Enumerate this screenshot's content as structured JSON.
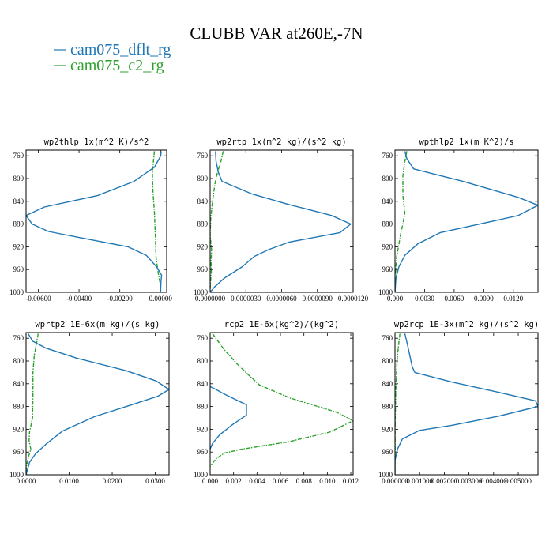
{
  "figure": {
    "title": "CLUBB VAR at260E,-7N",
    "legend": [
      {
        "label": "cam075_dflt_rg",
        "color": "#1f77b4",
        "dash": "solid"
      },
      {
        "label": "cam075_c2_rg",
        "color": "#2ca02c",
        "dash": "dashdot"
      }
    ]
  },
  "chart_data": [
    {
      "type": "line",
      "title": "wp2thlp   1x(m^2 K)/s^2",
      "xlim": [
        -0.0066,
        0.0003
      ],
      "ylim": [
        1000,
        750
      ],
      "yticks": [
        760,
        800,
        840,
        880,
        920,
        960,
        1000
      ],
      "xticks": [
        -0.006,
        -0.004,
        -0.002,
        0.0
      ],
      "xtick_labels": [
        "-0.00600",
        "-0.00400",
        "-0.00200",
        "0.00000"
      ],
      "series": [
        {
          "name": "cam075_dflt_rg",
          "points": [
            [
              3e-05,
              752
            ],
            [
              1e-05,
              760
            ],
            [
              -0.0003,
              780
            ],
            [
              -0.0013,
              805
            ],
            [
              -0.0031,
              830
            ],
            [
              -0.0057,
              850
            ],
            [
              -0.0066,
              865
            ],
            [
              -0.0063,
              880
            ],
            [
              -0.0055,
              893
            ],
            [
              -0.0038,
              905
            ],
            [
              -0.0016,
              920
            ],
            [
              -0.0007,
              935
            ],
            [
              -0.0002,
              955
            ],
            [
              5e-05,
              970
            ],
            [
              2e-05,
              980
            ],
            [
              0.0,
              1000
            ]
          ]
        },
        {
          "name": "cam075_c2_rg",
          "points": [
            [
              -0.0003,
              752
            ],
            [
              -0.00035,
              770
            ],
            [
              -0.0004,
              790
            ],
            [
              -0.00038,
              820
            ],
            [
              -0.0003,
              860
            ],
            [
              -0.00026,
              900
            ],
            [
              -0.00022,
              940
            ],
            [
              -0.00012,
              965
            ],
            [
              -2e-05,
              985
            ],
            [
              0.0,
              1000
            ]
          ]
        }
      ]
    },
    {
      "type": "line",
      "title": "wp2rtp   1x(m^2 kg)/(s^2 kg)",
      "xlim": [
        0.0,
        1.2e-05
      ],
      "ylim": [
        1000,
        750
      ],
      "yticks": [
        760,
        800,
        840,
        880,
        920,
        960,
        1000
      ],
      "xticks": [
        0.0,
        3e-06,
        6e-06,
        9e-06,
        1.2e-05
      ],
      "xtick_labels": [
        "0.0000000",
        "0.0000030",
        "0.0000060",
        "0.0000090",
        "0.0000120"
      ],
      "series": [
        {
          "name": "cam075_dflt_rg",
          "points": [
            [
              4.5e-07,
              752
            ],
            [
              5e-07,
              770
            ],
            [
              7e-07,
              790
            ],
            [
              1e-06,
              805
            ],
            [
              3.5e-06,
              827
            ],
            [
              6.5e-06,
              845
            ],
            [
              1.02e-05,
              865
            ],
            [
              1.18e-05,
              880
            ],
            [
              1.09e-05,
              895
            ],
            [
              6.6e-06,
              912
            ],
            [
              4.9e-06,
              925
            ],
            [
              3.7e-06,
              937
            ],
            [
              2.7e-06,
              955
            ],
            [
              1.2e-06,
              975
            ],
            [
              4e-07,
              990
            ],
            [
              0.0,
              1000
            ]
          ]
        },
        {
          "name": "cam075_c2_rg",
          "points": [
            [
              1.1e-06,
              752
            ],
            [
              9e-07,
              770
            ],
            [
              6e-07,
              790
            ],
            [
              4e-07,
              810
            ],
            [
              2e-07,
              840
            ],
            [
              5e-08,
              870
            ],
            [
              0.0,
              900
            ],
            [
              1.2e-07,
              925
            ],
            [
              8e-08,
              945
            ],
            [
              1e-07,
              965
            ],
            [
              2e-08,
              985
            ],
            [
              0.0,
              1000
            ]
          ]
        }
      ]
    },
    {
      "type": "line",
      "title": "wpthlp2   1x(m K^2)/s",
      "xlim": [
        0.0,
        0.0145
      ],
      "ylim": [
        1000,
        750
      ],
      "yticks": [
        760,
        800,
        840,
        880,
        920,
        960,
        1000
      ],
      "xticks": [
        0.0,
        0.003,
        0.006,
        0.009,
        0.012
      ],
      "xtick_labels": [
        "0.000",
        "0.0030",
        "0.0060",
        "0.0090",
        "0.0120"
      ],
      "series": [
        {
          "name": "cam075_dflt_rg",
          "points": [
            [
              0.001,
              752
            ],
            [
              0.0012,
              765
            ],
            [
              0.0019,
              783
            ],
            [
              0.0069,
              805
            ],
            [
              0.0125,
              833
            ],
            [
              0.0145,
              847
            ],
            [
              0.0125,
              865
            ],
            [
              0.0086,
              880
            ],
            [
              0.0046,
              895
            ],
            [
              0.0023,
              915
            ],
            [
              0.001,
              935
            ],
            [
              0.0004,
              955
            ],
            [
              0.0001,
              975
            ],
            [
              0.0,
              1000
            ]
          ]
        },
        {
          "name": "cam075_c2_rg",
          "points": [
            [
              0.0012,
              752
            ],
            [
              0.001,
              770
            ],
            [
              0.0008,
              795
            ],
            [
              0.0008,
              830
            ],
            [
              0.001,
              860
            ],
            [
              0.0008,
              880
            ],
            [
              0.0006,
              895
            ],
            [
              0.0004,
              915
            ],
            [
              0.00015,
              940
            ],
            [
              5e-05,
              970
            ],
            [
              0.0,
              1000
            ]
          ]
        }
      ]
    },
    {
      "type": "line",
      "title": "wprtp2   1E-6x(m kg)/(s kg)",
      "xlim": [
        0.0,
        0.0332
      ],
      "ylim": [
        1000,
        750
      ],
      "yticks": [
        760,
        800,
        840,
        880,
        920,
        960,
        1000
      ],
      "xticks": [
        0.0,
        0.01,
        0.02,
        0.03
      ],
      "xtick_labels": [
        "0.0000",
        "0.0100",
        "0.0200",
        "0.0300"
      ],
      "series": [
        {
          "name": "cam075_dflt_rg",
          "points": [
            [
              0.0005,
              752
            ],
            [
              0.0015,
              765
            ],
            [
              0.0045,
              777
            ],
            [
              0.0118,
              795
            ],
            [
              0.0232,
              817
            ],
            [
              0.0302,
              835
            ],
            [
              0.0332,
              850
            ],
            [
              0.0306,
              862
            ],
            [
              0.0245,
              877
            ],
            [
              0.0158,
              898
            ],
            [
              0.0085,
              923
            ],
            [
              0.0048,
              945
            ],
            [
              0.0022,
              963
            ],
            [
              0.0008,
              978
            ],
            [
              0.0,
              1000
            ]
          ]
        },
        {
          "name": "cam075_c2_rg",
          "points": [
            [
              0.0028,
              752
            ],
            [
              0.0024,
              770
            ],
            [
              0.0019,
              790
            ],
            [
              0.0016,
              820
            ],
            [
              0.0016,
              860
            ],
            [
              0.0015,
              900
            ],
            [
              0.0008,
              925
            ],
            [
              0.0007,
              940
            ],
            [
              0.0011,
              955
            ],
            [
              0.0005,
              970
            ],
            [
              0.0001,
              985
            ],
            [
              0.0,
              1000
            ]
          ]
        }
      ]
    },
    {
      "type": "line",
      "title": "rcp2   1E-6x(kg^2)/(kg^2)",
      "xlim": [
        0.0,
        0.0122
      ],
      "ylim": [
        1000,
        750
      ],
      "yticks": [
        760,
        800,
        840,
        880,
        920,
        960,
        1000
      ],
      "xticks": [
        0.0,
        0.002,
        0.004,
        0.006,
        0.008,
        0.01,
        0.012
      ],
      "xtick_labels": [
        "0.000",
        "0.002",
        "0.004",
        "0.006",
        "0.008",
        "0.010",
        "0.012"
      ],
      "series": [
        {
          "name": "cam075_dflt_rg",
          "points": [
            [
              0.0,
              845
            ],
            [
              0.0005,
              850
            ],
            [
              0.0012,
              858
            ],
            [
              0.0022,
              868
            ],
            [
              0.0031,
              877
            ],
            [
              0.0031,
              895
            ],
            [
              0.0019,
              912
            ],
            [
              0.0008,
              930
            ],
            [
              0.0002,
              945
            ],
            [
              0.0,
              955
            ]
          ]
        },
        {
          "name": "cam075_c2_rg",
          "points": [
            [
              0.0002,
              752
            ],
            [
              0.0012,
              780
            ],
            [
              0.0023,
              805
            ],
            [
              0.0033,
              825
            ],
            [
              0.0042,
              842
            ],
            [
              0.0068,
              865
            ],
            [
              0.0108,
              890
            ],
            [
              0.0122,
              905
            ],
            [
              0.0102,
              925
            ],
            [
              0.0067,
              942
            ],
            [
              0.0027,
              955
            ],
            [
              0.0012,
              962
            ],
            [
              0.0005,
              972
            ],
            [
              0.0,
              985
            ]
          ]
        }
      ]
    },
    {
      "type": "line",
      "title": "wp2rcp   1E-3x(m^2 kg)/(s^2 kg)",
      "xlim": [
        0.0,
        0.0058
      ],
      "ylim": [
        1000,
        750
      ],
      "yticks": [
        760,
        800,
        840,
        880,
        920,
        960,
        1000
      ],
      "xticks": [
        0.0,
        0.001,
        0.002,
        0.003,
        0.004,
        0.005
      ],
      "xtick_labels": [
        "0.000000",
        "0.001000",
        "0.002000",
        "0.003000",
        "0.004000",
        "0.005000"
      ],
      "series": [
        {
          "name": "cam075_dflt_rg",
          "points": [
            [
              0.0004,
              752
            ],
            [
              0.0005,
              770
            ],
            [
              0.0006,
              790
            ],
            [
              0.0007,
              810
            ],
            [
              0.0008,
              820
            ],
            [
              0.0023,
              837
            ],
            [
              0.0042,
              855
            ],
            [
              0.0057,
              870
            ],
            [
              0.0058,
              880
            ],
            [
              0.0042,
              897
            ],
            [
              0.0023,
              913
            ],
            [
              0.001,
              922
            ],
            [
              0.0003,
              937
            ],
            [
              0.0001,
              955
            ],
            [
              0.0,
              975
            ],
            [
              0.0,
              1000
            ]
          ]
        },
        {
          "name": "cam075_c2_rg",
          "points": [
            [
              0.0002,
              752
            ],
            [
              0.00015,
              770
            ],
            [
              0.0001,
              790
            ],
            [
              6e-05,
              820
            ],
            [
              3e-05,
              860
            ],
            [
              1e-05,
              900
            ],
            [
              0.0,
              1000
            ]
          ]
        }
      ]
    }
  ]
}
